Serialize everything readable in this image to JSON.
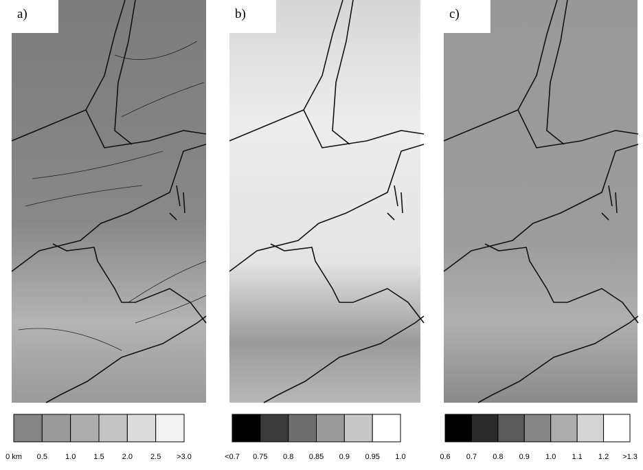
{
  "panels": [
    {
      "label": "a)",
      "legend": {
        "colors": [
          "#858585",
          "#9a9a9a",
          "#adadad",
          "#c4c4c4",
          "#dcdcdc",
          "#f2f2f2"
        ],
        "labels": [
          "0 km",
          "0.5",
          "1.0",
          "1.5",
          "2.0",
          "2.5",
          ">3.0"
        ]
      }
    },
    {
      "label": "b)",
      "legend": {
        "colors": [
          "#000000",
          "#3a3a3a",
          "#6e6e6e",
          "#9a9a9a",
          "#c8c8c8",
          "#ffffff"
        ],
        "labels": [
          "<0.7",
          "0.75",
          "0.8",
          "0.85",
          "0.9",
          "0.95",
          "1.0"
        ]
      }
    },
    {
      "label": "c)",
      "legend": {
        "colors": [
          "#000000",
          "#2a2a2a",
          "#5a5a5a",
          "#858585",
          "#adadad",
          "#d4d4d4",
          "#ffffff"
        ],
        "labels": [
          "0.6",
          "0.7",
          "0.8",
          "0.9",
          "1.0",
          "1.1",
          "1.2",
          ">1.3"
        ]
      }
    }
  ]
}
